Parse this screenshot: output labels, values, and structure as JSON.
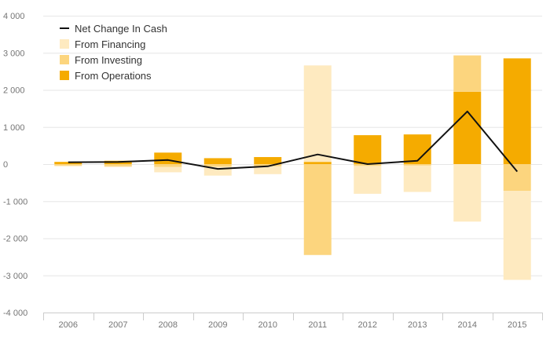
{
  "chart_data": {
    "type": "bar",
    "stacked": true,
    "categories": [
      "2006",
      "2007",
      "2008",
      "2009",
      "2010",
      "2011",
      "2012",
      "2013",
      "2014",
      "2015"
    ],
    "series": [
      {
        "name": "From Operations",
        "type": "bar",
        "color": "#f5ab00",
        "values": [
          60,
          90,
          310,
          160,
          190,
          60,
          780,
          800,
          1950,
          2850
        ]
      },
      {
        "name": "From Investing",
        "type": "bar",
        "color": "#fcd57e",
        "values": [
          -40,
          -60,
          -80,
          -70,
          -60,
          -2450,
          -50,
          -40,
          980,
          -720
        ]
      },
      {
        "name": "From Financing",
        "type": "bar",
        "color": "#feeac0",
        "values": [
          -20,
          -20,
          -140,
          -240,
          -210,
          2600,
          -750,
          -710,
          -1550,
          -2400
        ]
      },
      {
        "name": "Net Change In Cash",
        "type": "line",
        "color": "#111111",
        "values": [
          50,
          60,
          110,
          -130,
          -60,
          260,
          0,
          90,
          1420,
          -200
        ]
      }
    ],
    "ylim": [
      -4000,
      4000
    ],
    "yticks": [
      -4000,
      -3000,
      -2000,
      -1000,
      0,
      1000,
      2000,
      3000,
      4000
    ],
    "ytick_labels": [
      "-4 000",
      "-3 000",
      "-2 000",
      "-1 000",
      "0",
      "1 000",
      "2 000",
      "3 000",
      "4 000"
    ],
    "grid": true,
    "legend_position": "top-left",
    "title": "",
    "xlabel": "",
    "ylabel": ""
  }
}
